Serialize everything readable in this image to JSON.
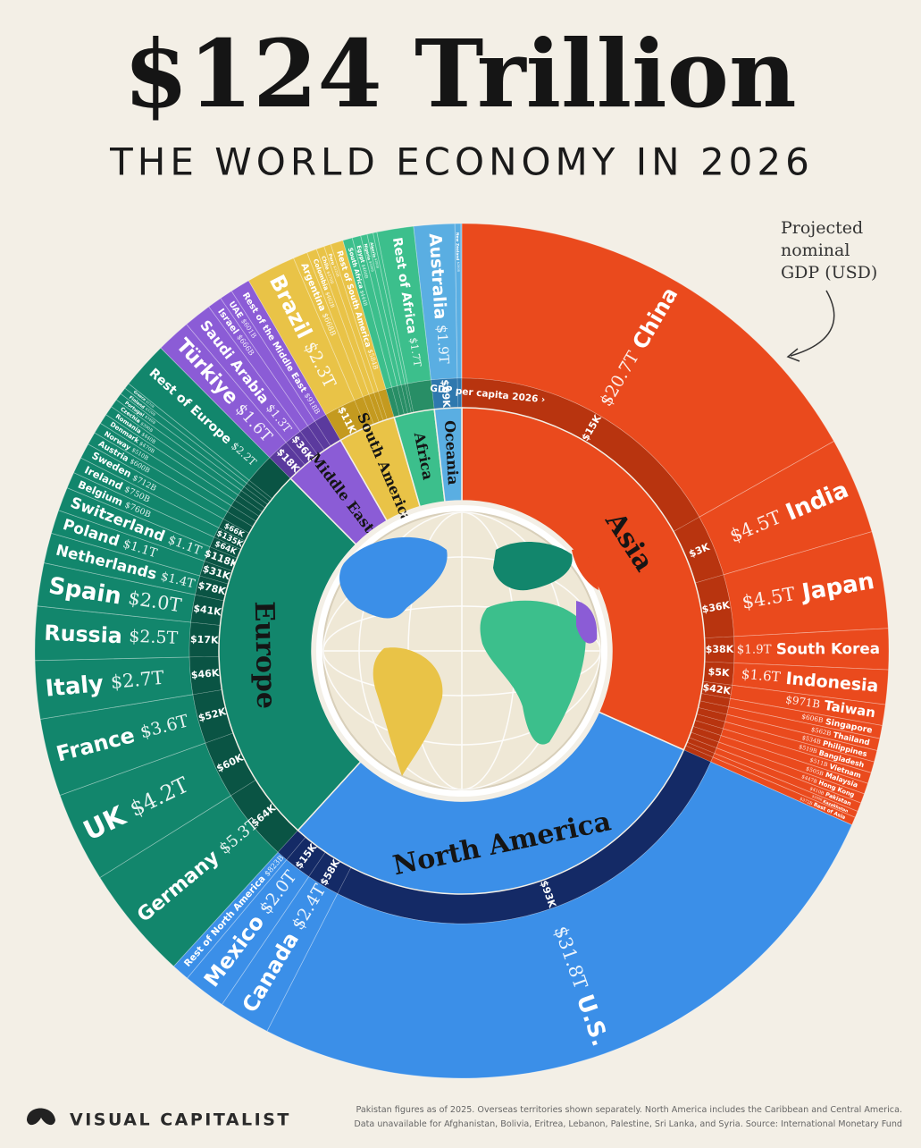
{
  "chart_data": {
    "type": "sunburst",
    "title": "$124 Trillion",
    "subtitle": "THE WORLD ECONOMY IN 2026",
    "annotation": [
      "Projected",
      "nominal",
      "GDP (USD)"
    ],
    "per_capita_title": "GDP per capita 2026 ›",
    "series": [
      {
        "name": "Asia",
        "color": "#ea4a1d",
        "band_color": "#b8340f",
        "categories": [
          "China",
          "India",
          "Japan",
          "South Korea",
          "Indonesia",
          "Taiwan",
          "Singapore",
          "Thailand",
          "Philippines",
          "Bangladesh",
          "Vietnam",
          "Malaysia",
          "Hong Kong",
          "Pakistan",
          "Kazakhstan",
          "Rest of Asia"
        ],
        "values": [
          20.7,
          4.5,
          4.5,
          1.9,
          1.6,
          0.971,
          0.606,
          0.562,
          0.534,
          0.519,
          0.511,
          0.505,
          0.447,
          0.41,
          0.3,
          0.372
        ],
        "value_labels": [
          "$20.7T",
          "$4.5T",
          "$4.5T",
          "$1.9T",
          "$1.6T",
          "$971B",
          "$606B",
          "$562B",
          "$534B",
          "$519B",
          "$511B",
          "$505B",
          "$447B",
          "$410B",
          "$300B",
          "$372B"
        ],
        "per_capita": [
          "$15K",
          "$3K",
          "$36K",
          "$38K",
          "$5K",
          "$42K",
          null,
          null,
          null,
          null,
          null,
          null,
          null,
          null,
          null,
          null
        ]
      },
      {
        "name": "North America",
        "color": "#3b8fe8",
        "band_color": "#142a66",
        "categories": [
          "U.S.",
          "Canada",
          "Mexico",
          "Rest of North America"
        ],
        "values": [
          31.8,
          2.4,
          2.0,
          0.823
        ],
        "value_labels": [
          "$31.8T",
          "$2.4T",
          "$2.0T",
          "$823B"
        ],
        "per_capita": [
          "$93K",
          "$58K",
          "$15K",
          null
        ]
      },
      {
        "name": "Europe",
        "color": "#12866c",
        "band_color": "#0a5444",
        "categories": [
          "Germany",
          "UK",
          "France",
          "Italy",
          "Russia",
          "Spain",
          "Netherlands",
          "Poland",
          "Switzerland",
          "Belgium",
          "Ireland",
          "Sweden",
          "Austria",
          "Norway",
          "Denmark",
          "Romania",
          "Czechia",
          "Portugal",
          "Finland",
          "Greece",
          "Rest of Europe"
        ],
        "values": [
          5.3,
          4.2,
          3.6,
          2.7,
          2.5,
          2.0,
          1.4,
          1.1,
          1.1,
          0.76,
          0.75,
          0.712,
          0.6,
          0.51,
          0.47,
          0.44,
          0.39,
          0.34,
          0.32,
          0.27,
          2.2
        ],
        "value_labels": [
          "$5.3T",
          "$4.2T",
          "$3.6T",
          "$2.7T",
          "$2.5T",
          "$2.0T",
          "$1.4T",
          "$1.1T",
          "$1.1T",
          "$760B",
          "$750B",
          "$712B",
          "$600B",
          "$510B",
          "$470B",
          "$440B",
          "$390B",
          "$340B",
          "$320B",
          "$270B",
          "$2.2T"
        ],
        "per_capita": [
          "$64K",
          "$60K",
          "$52K",
          "$46K",
          "$17K",
          "$41K",
          "$78K",
          "$31K",
          "$118K",
          "$64K",
          "$135K",
          "$66K",
          null,
          null,
          null,
          null,
          null,
          null,
          null,
          null,
          null
        ]
      },
      {
        "name": "Middle East",
        "color": "#8b5cd6",
        "band_color": "#5b3a9e",
        "categories": [
          "Türkiye",
          "Saudi Arabia",
          "Israel",
          "UAE",
          "Rest of the Middle East"
        ],
        "values": [
          1.6,
          1.3,
          0.666,
          0.601,
          0.918
        ],
        "value_labels": [
          "$1.6T",
          "$1.3T",
          "$666B",
          "$601B",
          "$918B"
        ],
        "per_capita": [
          "$18K",
          "$36K",
          null,
          null,
          null
        ]
      },
      {
        "name": "South America",
        "color": "#e9c347",
        "band_color": "#c49a1f",
        "categories": [
          "Brazil",
          "Argentina",
          "Colombia",
          "Chile",
          "Peru",
          "Rest of South America"
        ],
        "values": [
          2.3,
          0.668,
          0.462,
          0.37,
          0.32,
          0.584
        ],
        "value_labels": [
          "$2.3T",
          "$668B",
          "$462B",
          "$370B",
          "$320B",
          "$584B"
        ],
        "per_capita": [
          "$11K",
          null,
          null,
          null,
          null,
          null
        ]
      },
      {
        "name": "Africa",
        "color": "#3cbf8c",
        "band_color": "#288e66",
        "categories": [
          "South Africa",
          "Egypt",
          "Nigeria",
          "Algeria",
          "Morocco",
          "Rest of Africa"
        ],
        "values": [
          0.444,
          0.4,
          0.3,
          0.28,
          0.18,
          1.7
        ],
        "value_labels": [
          "$444B",
          "$400B",
          "$300B",
          "$280B",
          "$180B",
          "$1.7T"
        ],
        "per_capita": [
          null,
          null,
          null,
          null,
          null,
          null
        ]
      },
      {
        "name": "Oceania",
        "color": "#5aaee2",
        "band_color": "#2f78ae",
        "categories": [
          "Australia",
          "New Zealand",
          "Rest of Oceania"
        ],
        "values": [
          1.9,
          0.28,
          0.04
        ],
        "value_labels": [
          "$1.9T",
          "$280B",
          "$40B"
        ],
        "per_capita": [
          "$69K",
          null,
          null
        ]
      }
    ]
  },
  "footer": {
    "brand": "VISUAL CAPITALIST",
    "notes": [
      "Pakistan figures as of 2025. Overseas territories shown separately. North America includes the Caribbean and Central America.",
      "Data unavailable for Afghanistan, Bolivia, Eritrea, Lebanon, Palestine, Sri Lanka, and Syria. Source: International Monetary Fund"
    ]
  }
}
